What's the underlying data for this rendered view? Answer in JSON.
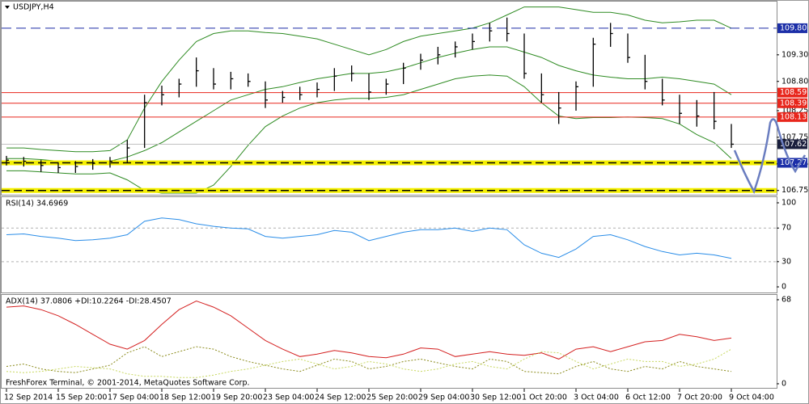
{
  "chart_data": [
    {
      "type": "hlc",
      "title": "USDJPY,H4",
      "color": "#000000",
      "high": [
        107.4,
        107.38,
        107.32,
        107.28,
        107.3,
        107.34,
        107.38,
        107.7,
        108.55,
        108.72,
        108.85,
        109.25,
        109.05,
        108.98,
        108.95,
        108.8,
        108.62,
        108.7,
        108.78,
        109.05,
        109.1,
        108.95,
        108.85,
        109.15,
        109.32,
        109.45,
        109.55,
        109.7,
        109.9,
        110.0,
        109.7,
        108.95,
        108.6,
        108.8,
        109.62,
        109.9,
        109.7,
        109.3,
        108.85,
        108.55,
        108.45,
        108.6,
        108.0
      ],
      "low": [
        107.22,
        107.2,
        107.1,
        107.08,
        107.08,
        107.14,
        107.18,
        107.28,
        107.55,
        108.35,
        108.5,
        108.7,
        108.65,
        108.65,
        108.7,
        108.3,
        108.4,
        108.45,
        108.5,
        108.62,
        108.8,
        108.45,
        108.55,
        108.75,
        109.02,
        109.12,
        109.25,
        109.4,
        109.55,
        109.55,
        108.85,
        108.4,
        108.0,
        108.25,
        108.7,
        109.45,
        109.15,
        108.65,
        108.35,
        108.0,
        107.95,
        107.9,
        107.55
      ],
      "close": [
        107.32,
        107.3,
        107.22,
        107.18,
        107.2,
        107.26,
        107.3,
        107.55,
        108.4,
        108.55,
        108.75,
        109.0,
        108.75,
        108.85,
        108.8,
        108.45,
        108.5,
        108.55,
        108.65,
        108.9,
        108.95,
        108.6,
        108.75,
        109.05,
        109.2,
        109.3,
        109.45,
        109.55,
        109.75,
        109.7,
        108.95,
        108.55,
        108.3,
        108.7,
        109.5,
        109.7,
        109.25,
        108.8,
        108.45,
        108.2,
        108.15,
        108.05,
        107.62
      ],
      "bands": {
        "color": "#2e8b22",
        "upper": [
          107.55,
          107.55,
          107.52,
          107.5,
          107.48,
          107.48,
          107.5,
          107.7,
          108.3,
          108.8,
          109.2,
          109.55,
          109.7,
          109.75,
          109.75,
          109.72,
          109.7,
          109.65,
          109.6,
          109.5,
          109.4,
          109.3,
          109.4,
          109.55,
          109.65,
          109.7,
          109.75,
          109.8,
          109.9,
          110.05,
          110.2,
          110.2,
          110.2,
          110.15,
          110.1,
          110.1,
          110.05,
          109.95,
          109.9,
          109.92,
          109.95,
          109.95,
          109.8
        ],
        "middle": [
          107.35,
          107.35,
          107.33,
          107.3,
          107.28,
          107.28,
          107.3,
          107.38,
          107.5,
          107.65,
          107.85,
          108.05,
          108.25,
          108.45,
          108.55,
          108.65,
          108.7,
          108.78,
          108.85,
          108.9,
          108.95,
          108.95,
          108.98,
          109.05,
          109.15,
          109.25,
          109.33,
          109.4,
          109.45,
          109.45,
          109.35,
          109.25,
          109.1,
          109.0,
          108.92,
          108.88,
          108.85,
          108.85,
          108.88,
          108.85,
          108.8,
          108.75,
          108.55
        ],
        "lower": [
          107.12,
          107.12,
          107.1,
          107.08,
          107.06,
          107.06,
          107.08,
          106.95,
          106.75,
          106.7,
          106.7,
          106.7,
          106.85,
          107.2,
          107.6,
          107.95,
          108.15,
          108.3,
          108.4,
          108.45,
          108.48,
          108.48,
          108.5,
          108.55,
          108.65,
          108.75,
          108.85,
          108.9,
          108.92,
          108.9,
          108.7,
          108.4,
          108.15,
          108.1,
          108.12,
          108.12,
          108.13,
          108.12,
          108.1,
          108.0,
          107.8,
          107.65,
          107.35
        ]
      },
      "ylim": [
        106.67,
        110.3
      ],
      "yticks": [
        {
          "value": 109.3,
          "label": "109.30"
        },
        {
          "value": 108.8,
          "label": "108.80"
        },
        108.25,
        107.75,
        107.25,
        106.75
      ],
      "levels": [
        {
          "value": 109.8,
          "label": "109.80",
          "color": "#1c2fa8",
          "style": "dashed"
        },
        {
          "value": 108.59,
          "label": "108.59",
          "color": "#e8261c",
          "style": "solid"
        },
        {
          "value": 108.39,
          "label": "108.39",
          "color": "#e8261c",
          "style": "solid"
        },
        {
          "value": 108.13,
          "label": "108.13",
          "color": "#e8261c",
          "style": "solid"
        },
        {
          "value": 107.62,
          "label": "107.62",
          "color": "#1a1f3d",
          "style": "current"
        },
        {
          "value": 107.27,
          "label": "107.27",
          "color": "#1c2fa8",
          "style": "highlight"
        },
        {
          "value": 106.75,
          "color": "#f5f000",
          "style": "highlight"
        }
      ]
    },
    {
      "type": "line",
      "title": "RSI(14) 34.6969",
      "series": [
        {
          "color": "#2a8de8",
          "style": "solid",
          "values": [
            62,
            63,
            60,
            58,
            55,
            56,
            58,
            62,
            78,
            82,
            80,
            75,
            72,
            70,
            69,
            60,
            58,
            60,
            62,
            67,
            65,
            55,
            60,
            65,
            68,
            68,
            70,
            66,
            70,
            68,
            50,
            40,
            35,
            45,
            60,
            62,
            56,
            48,
            42,
            38,
            40,
            38,
            34
          ]
        }
      ],
      "ylim": [
        -6.7,
        107.7
      ],
      "yticks": [
        100,
        70,
        30,
        0
      ],
      "levels": [
        70,
        30
      ]
    },
    {
      "type": "line",
      "title": "ADX(14) 37.0806 +DI:10.2264 -DI:28.4507",
      "credit": "FreshForex Terminal, © 2001-2014, MetaQuotes Software Corp.",
      "series": [
        {
          "color": "#d42020",
          "style": "solid",
          "values": [
            62,
            63,
            60,
            55,
            48,
            40,
            32,
            28,
            35,
            48,
            60,
            67,
            62,
            55,
            45,
            35,
            28,
            22,
            24,
            27,
            25,
            22,
            21,
            24,
            29,
            28,
            22,
            24,
            26,
            24,
            23,
            25,
            20,
            28,
            30,
            26,
            30,
            34,
            35,
            40,
            38,
            35,
            37
          ]
        },
        {
          "color": "#8a8a1a",
          "style": "dotted",
          "values": [
            14,
            16,
            12,
            10,
            9,
            12,
            15,
            25,
            30,
            22,
            26,
            30,
            28,
            22,
            18,
            15,
            12,
            10,
            15,
            20,
            18,
            12,
            14,
            18,
            20,
            17,
            14,
            12,
            20,
            18,
            10,
            9,
            8,
            14,
            18,
            12,
            10,
            14,
            12,
            18,
            14,
            12,
            10
          ]
        },
        {
          "color": "#c8d860",
          "style": "dotted",
          "values": [
            10,
            9,
            10,
            12,
            14,
            13,
            12,
            8,
            6,
            6,
            5,
            5,
            7,
            10,
            12,
            15,
            18,
            20,
            16,
            12,
            14,
            18,
            16,
            12,
            10,
            12,
            16,
            18,
            14,
            12,
            20,
            26,
            25,
            18,
            12,
            16,
            20,
            18,
            18,
            14,
            16,
            20,
            28
          ]
        }
      ],
      "ylim": [
        -3.3,
        71.9
      ],
      "yticks": [
        68,
        0
      ],
      "categories": [
        "12 Sep 2014",
        null,
        null,
        "15 Sep 20:00",
        null,
        null,
        "17 Sep 04:00",
        null,
        null,
        "18 Sep 12:00",
        null,
        null,
        "19 Sep 20:00",
        null,
        null,
        "23 Sep 04:00",
        null,
        null,
        "24 Sep 12:00",
        null,
        null,
        "25 Sep 20:00",
        null,
        null,
        "29 Sep 04:00",
        null,
        null,
        "30 Sep 12:00",
        null,
        null,
        "1 Oct 20:00",
        null,
        null,
        "3 Oct 04:00",
        null,
        null,
        "6 Oct 12:00",
        null,
        null,
        "7 Oct 20:00",
        null,
        null,
        "9 Oct 04:00"
      ]
    }
  ]
}
